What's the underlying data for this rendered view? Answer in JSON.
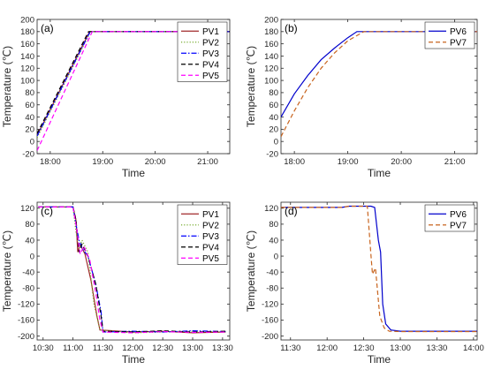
{
  "chart_data": [
    {
      "panel_label": "(a)",
      "type": "line",
      "xlabel": "Time",
      "ylabel": "Temperature (℃)",
      "xlim": [
        17.75,
        21.42
      ],
      "ylim": [
        -20,
        200
      ],
      "xticks": [
        18,
        19,
        20,
        21
      ],
      "xtick_labels": [
        "18:00",
        "19:00",
        "20:00",
        "21:00"
      ],
      "yticks": [
        -20,
        0,
        20,
        40,
        60,
        80,
        100,
        120,
        140,
        160,
        180,
        200
      ],
      "grid": false,
      "legend": "top-right",
      "series": [
        {
          "name": "PV1",
          "color": "#a0282a",
          "dash": "solid",
          "x": [
            17.75,
            18.75,
            21.42
          ],
          "y": [
            10,
            180,
            180
          ]
        },
        {
          "name": "PV2",
          "color": "#77ac30",
          "dash": "dotted",
          "x": [
            17.75,
            18.77,
            21.42
          ],
          "y": [
            6,
            180,
            180
          ]
        },
        {
          "name": "PV3",
          "color": "#0000ff",
          "dash": "dashdot",
          "x": [
            17.75,
            18.76,
            21.42
          ],
          "y": [
            9,
            180,
            180
          ]
        },
        {
          "name": "PV4",
          "color": "#000000",
          "dash": "dashed",
          "x": [
            17.75,
            18.73,
            21.42
          ],
          "y": [
            13,
            180,
            180
          ]
        },
        {
          "name": "PV5",
          "color": "#ff00ff",
          "dash": "dashed",
          "x": [
            17.75,
            18.8,
            21.42
          ],
          "y": [
            -15,
            180,
            180
          ]
        }
      ]
    },
    {
      "panel_label": "(b)",
      "type": "line",
      "xlabel": "Time",
      "ylabel": "Temperature (℃)",
      "xlim": [
        17.75,
        21.42
      ],
      "ylim": [
        -20,
        200
      ],
      "xticks": [
        18,
        19,
        20,
        21
      ],
      "xtick_labels": [
        "18:00",
        "19:00",
        "20:00",
        "21:00"
      ],
      "yticks": [
        -20,
        0,
        20,
        40,
        60,
        80,
        100,
        120,
        140,
        160,
        180,
        200
      ],
      "grid": false,
      "legend": "top-right",
      "series": [
        {
          "name": "PV6",
          "color": "#0000cc",
          "dash": "solid",
          "x": [
            17.75,
            18.0,
            18.25,
            18.5,
            18.75,
            19.0,
            19.17,
            21.42
          ],
          "y": [
            40,
            78,
            108,
            134,
            153,
            170,
            180,
            180
          ]
        },
        {
          "name": "PV7",
          "color": "#c8641e",
          "dash": "dashed",
          "x": [
            17.75,
            18.0,
            18.25,
            18.5,
            18.75,
            19.0,
            19.3,
            21.42
          ],
          "y": [
            8,
            50,
            88,
            120,
            145,
            165,
            180,
            180
          ]
        }
      ]
    },
    {
      "panel_label": "(c)",
      "type": "line",
      "xlabel": "Time",
      "ylabel": "Temperature (℃)",
      "xlim": [
        10.4,
        13.62
      ],
      "ylim": [
        -210,
        135
      ],
      "xticks": [
        10.5,
        11,
        11.5,
        12,
        12.5,
        13,
        13.5
      ],
      "xtick_labels": [
        "10:30",
        "11:00",
        "11:30",
        "12:00",
        "12:30",
        "13:00",
        "13:30"
      ],
      "yticks": [
        -200,
        -160,
        -120,
        -80,
        -40,
        0,
        40,
        80,
        120
      ],
      "grid": false,
      "legend": "top-right",
      "series": [
        {
          "name": "PV1",
          "color": "#a0282a",
          "dash": "solid",
          "x": [
            10.42,
            11.0,
            11.05,
            11.08,
            11.12,
            11.2,
            11.3,
            11.4,
            11.45,
            12.0,
            12.5,
            13.0,
            13.55
          ],
          "y": [
            123,
            123,
            90,
            10,
            30,
            5,
            -60,
            -150,
            -185,
            -190,
            -188,
            -192,
            -190
          ]
        },
        {
          "name": "PV2",
          "color": "#77ac30",
          "dash": "dotted",
          "x": [
            10.42,
            11.0,
            11.05,
            11.1,
            11.15,
            11.25,
            11.35,
            11.45,
            12.0,
            12.5,
            13.0,
            13.55
          ],
          "y": [
            123,
            123,
            60,
            20,
            40,
            10,
            -120,
            -185,
            -192,
            -190,
            -188,
            -190
          ]
        },
        {
          "name": "PV3",
          "color": "#0000ff",
          "dash": "dashdot",
          "x": [
            10.42,
            11.0,
            11.05,
            11.1,
            11.15,
            11.25,
            11.38,
            11.47,
            11.5,
            12.0,
            12.5,
            13.0,
            13.55
          ],
          "y": [
            123,
            123,
            80,
            40,
            20,
            0,
            -70,
            -140,
            -190,
            -188,
            -190,
            -187,
            -189
          ]
        },
        {
          "name": "PV4",
          "color": "#000000",
          "dash": "dashed",
          "x": [
            10.42,
            11.0,
            11.05,
            11.1,
            11.15,
            11.25,
            11.38,
            11.47,
            11.5,
            12.0,
            12.5,
            13.0,
            13.55
          ],
          "y": [
            123,
            123,
            90,
            10,
            30,
            0,
            -70,
            -150,
            -188,
            -190,
            -187,
            -190,
            -188
          ]
        },
        {
          "name": "PV5",
          "color": "#ff00ff",
          "dash": "dashed",
          "x": [
            10.42,
            11.0,
            11.06,
            11.12,
            11.18,
            11.28,
            11.38,
            11.45,
            11.5,
            12.0,
            12.5,
            13.0,
            13.55
          ],
          "y": [
            123,
            123,
            70,
            5,
            25,
            -10,
            -90,
            -160,
            -190,
            -192,
            -189,
            -191,
            -190
          ]
        }
      ]
    },
    {
      "panel_label": "(d)",
      "type": "line",
      "xlabel": "Time",
      "ylabel": "Temperature (℃)",
      "xlim": [
        11.37,
        14.05
      ],
      "ylim": [
        -210,
        135
      ],
      "xticks": [
        11.5,
        12,
        12.5,
        13,
        13.5,
        14
      ],
      "xtick_labels": [
        "11:30",
        "12:00",
        "12:30",
        "13:00",
        "13:30",
        "14:00"
      ],
      "yticks": [
        -200,
        -160,
        -120,
        -80,
        -40,
        0,
        40,
        80,
        120
      ],
      "grid": false,
      "legend": "top-right",
      "series": [
        {
          "name": "PV6",
          "color": "#0000cc",
          "dash": "solid",
          "x": [
            11.37,
            12.2,
            12.3,
            12.6,
            12.65,
            12.7,
            12.73,
            12.76,
            12.8,
            12.87,
            13.0,
            14.05
          ],
          "y": [
            122,
            122,
            125,
            125,
            122,
            40,
            10,
            -120,
            -170,
            -185,
            -188,
            -188
          ]
        },
        {
          "name": "PV7",
          "color": "#c8641e",
          "dash": "dashed",
          "x": [
            11.37,
            12.2,
            12.3,
            12.55,
            12.6,
            12.62,
            12.66,
            12.72,
            12.78,
            12.85,
            13.0,
            14.05
          ],
          "y": [
            122,
            122,
            125,
            125,
            0,
            -45,
            -30,
            -150,
            -180,
            -188,
            -189,
            -189
          ]
        }
      ]
    }
  ]
}
